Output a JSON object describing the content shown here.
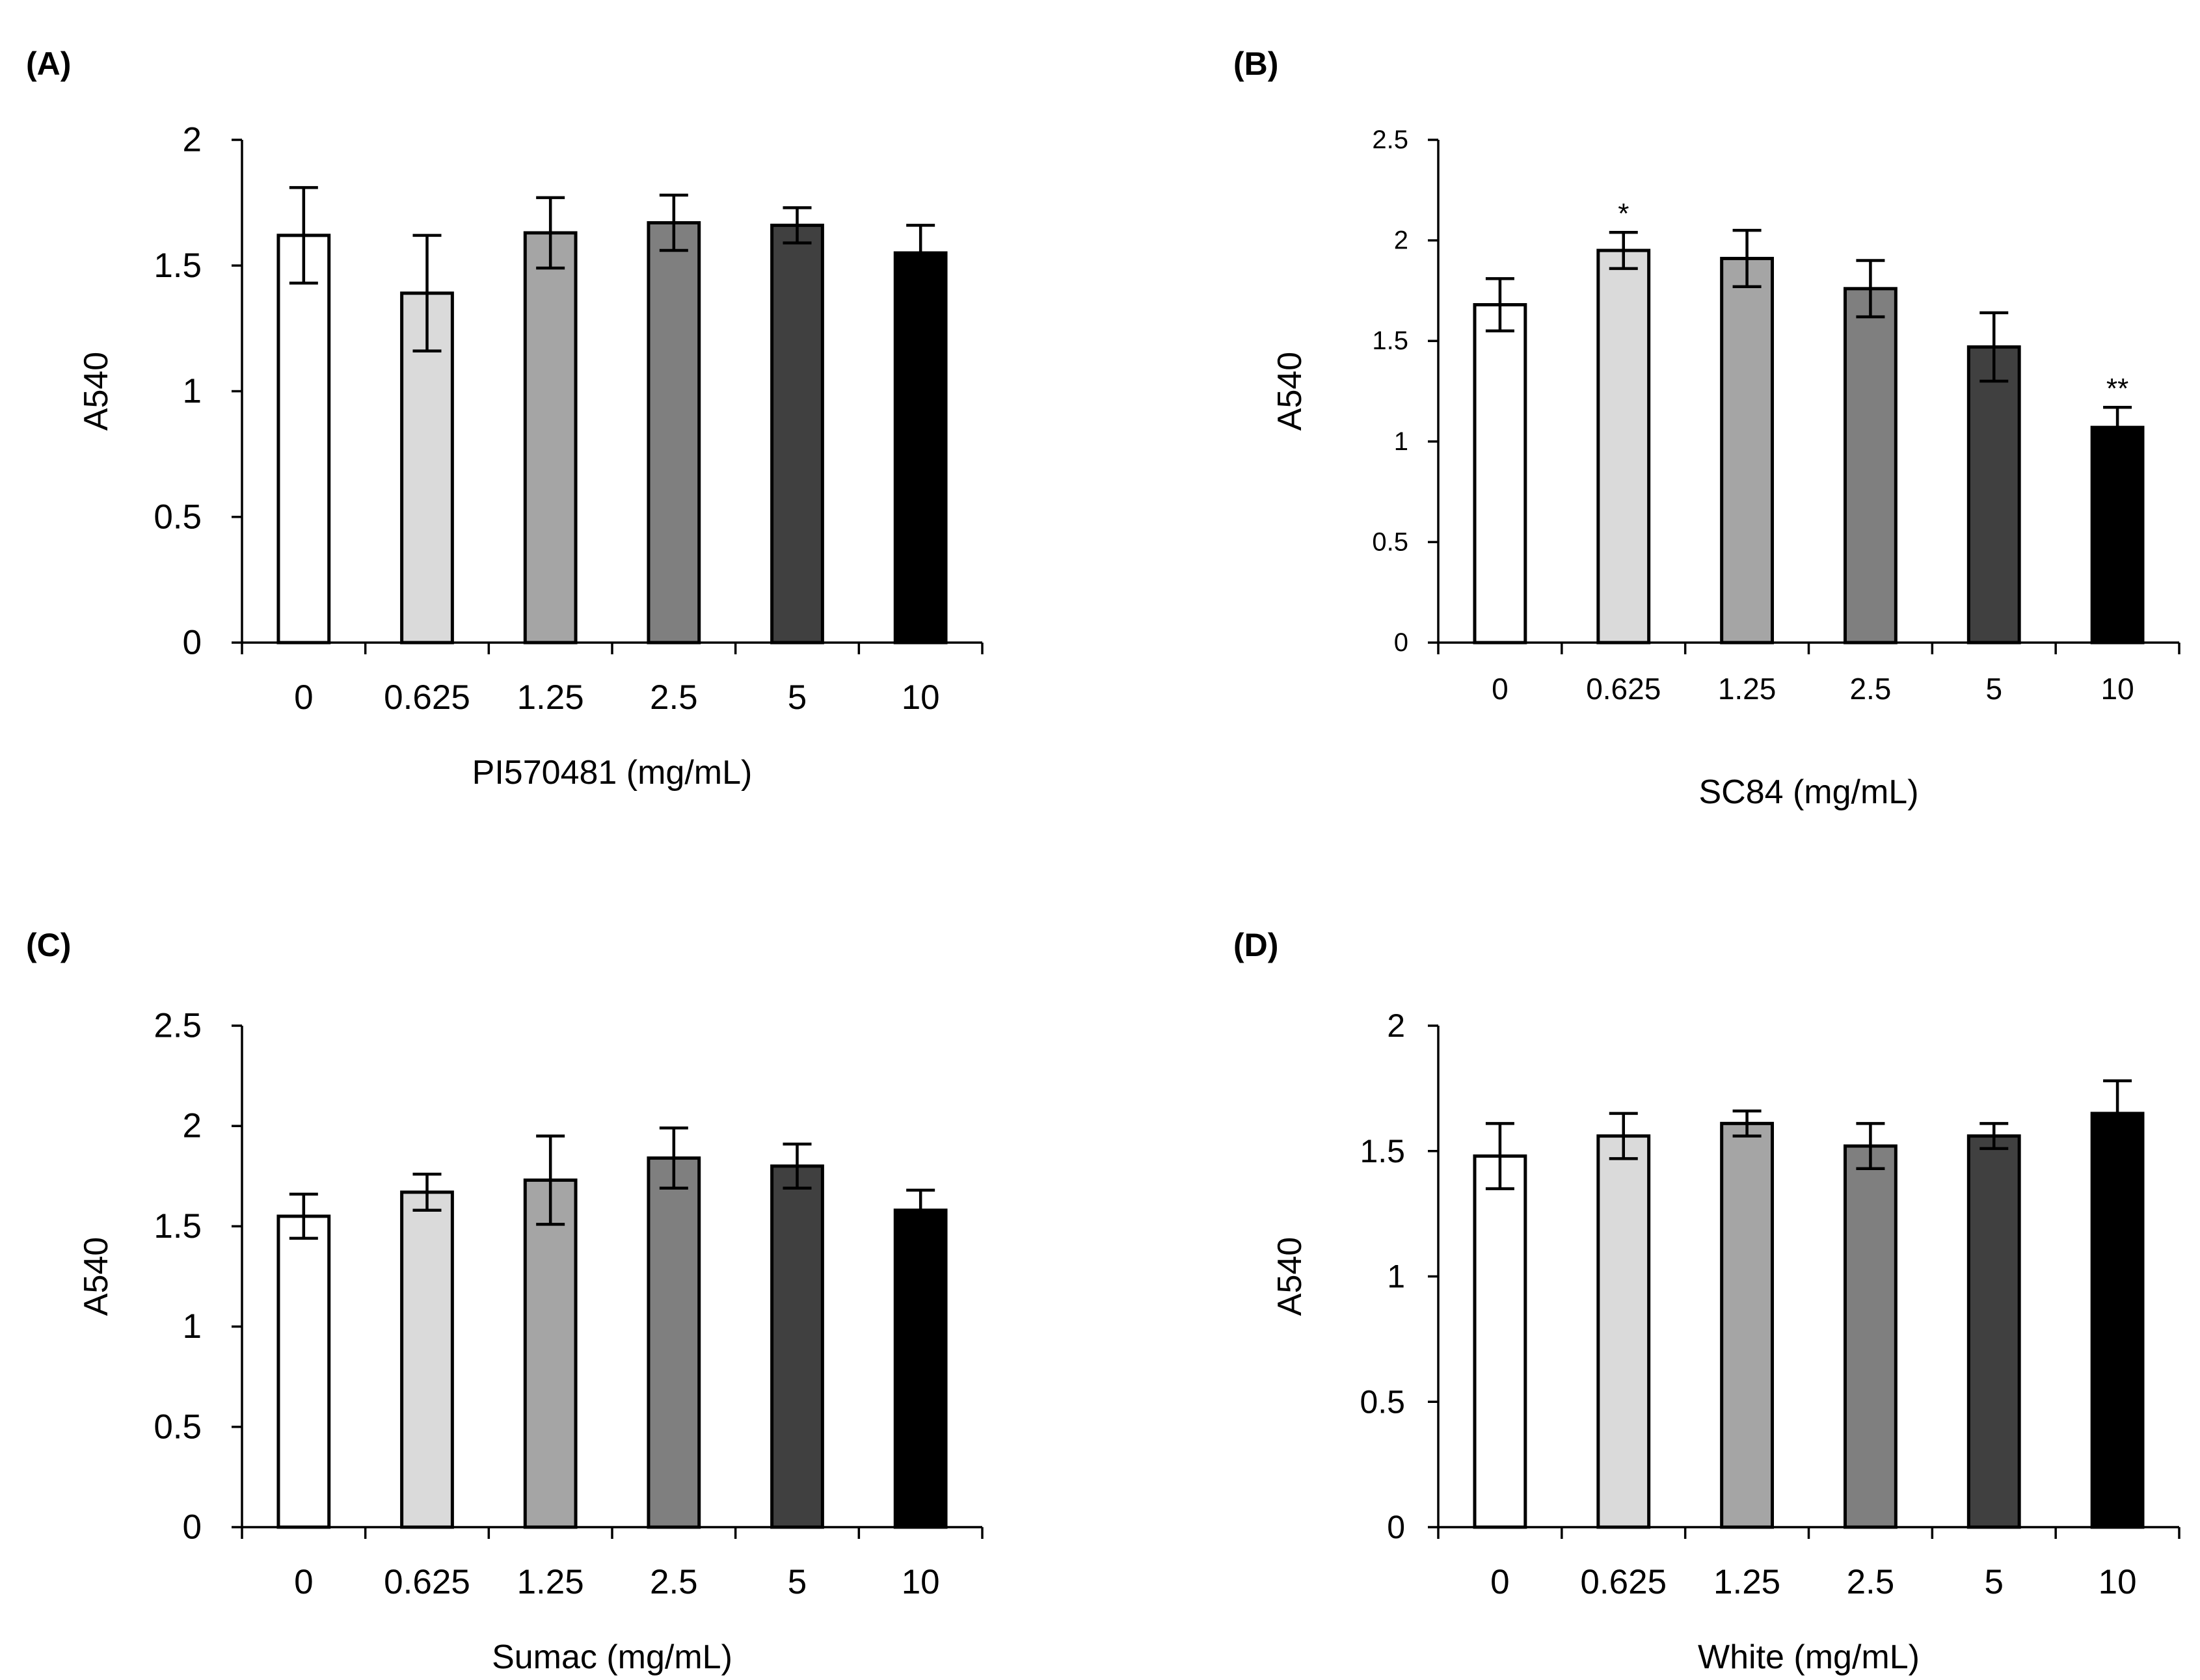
{
  "chart_data": [
    {
      "type": "bar",
      "panel_label": "(A)",
      "categories": [
        "0",
        "0.625",
        "1.25",
        "2.5",
        "5",
        "10"
      ],
      "values": [
        1.62,
        1.39,
        1.63,
        1.67,
        1.66,
        1.55
      ],
      "errors": [
        0.19,
        0.23,
        0.14,
        0.11,
        0.07,
        0.11
      ],
      "significance": [
        "",
        "",
        "",
        "",
        "",
        ""
      ],
      "colors": [
        "#ffffff",
        "#dadada",
        "#a5a5a5",
        "#7f7f7f",
        "#404040",
        "#000000"
      ],
      "xlabel": "PI570481 (mg/mL)",
      "ylabel": "A540",
      "ylim": [
        0,
        2
      ],
      "yticks": [
        "0",
        "0.5",
        "1",
        "1.5",
        "2"
      ]
    },
    {
      "type": "bar",
      "panel_label": "(B)",
      "categories": [
        "0",
        "0.625",
        "1.25",
        "2.5",
        "5",
        "10"
      ],
      "values": [
        1.68,
        1.95,
        1.91,
        1.76,
        1.47,
        1.07
      ],
      "errors": [
        0.13,
        0.09,
        0.14,
        0.14,
        0.17,
        0.1
      ],
      "significance": [
        "",
        "*",
        "",
        "",
        "",
        "**"
      ],
      "colors": [
        "#ffffff",
        "#dadada",
        "#a5a5a5",
        "#7f7f7f",
        "#404040",
        "#000000"
      ],
      "xlabel": "SC84 (mg/mL)",
      "ylabel": "A540",
      "ylim": [
        0,
        2.5
      ],
      "yticks": [
        "0",
        "0.5",
        "1",
        "1.5",
        "2",
        "2.5"
      ]
    },
    {
      "type": "bar",
      "panel_label": "(C)",
      "categories": [
        "0",
        "0.625",
        "1.25",
        "2.5",
        "5",
        "10"
      ],
      "values": [
        1.55,
        1.67,
        1.73,
        1.84,
        1.8,
        1.58
      ],
      "errors": [
        0.11,
        0.09,
        0.22,
        0.15,
        0.11,
        0.1
      ],
      "significance": [
        "",
        "",
        "",
        "",
        "",
        ""
      ],
      "colors": [
        "#ffffff",
        "#dadada",
        "#a5a5a5",
        "#7f7f7f",
        "#404040",
        "#000000"
      ],
      "xlabel": "Sumac (mg/mL)",
      "ylabel": "A540",
      "ylim": [
        0,
        2.5
      ],
      "yticks": [
        "0",
        "0.5",
        "1",
        "1.5",
        "2",
        "2.5"
      ]
    },
    {
      "type": "bar",
      "panel_label": "(D)",
      "categories": [
        "0",
        "0.625",
        "1.25",
        "2.5",
        "5",
        "10"
      ],
      "values": [
        1.48,
        1.56,
        1.61,
        1.52,
        1.56,
        1.65
      ],
      "errors": [
        0.13,
        0.09,
        0.05,
        0.09,
        0.05,
        0.13
      ],
      "significance": [
        "",
        "",
        "",
        "",
        "",
        ""
      ],
      "colors": [
        "#ffffff",
        "#dadada",
        "#a5a5a5",
        "#7f7f7f",
        "#404040",
        "#000000"
      ],
      "xlabel": "White (mg/mL)",
      "ylabel": "A540",
      "ylim": [
        0,
        2
      ],
      "yticks": [
        "0",
        "0.5",
        "1",
        "1.5",
        "2"
      ]
    }
  ]
}
